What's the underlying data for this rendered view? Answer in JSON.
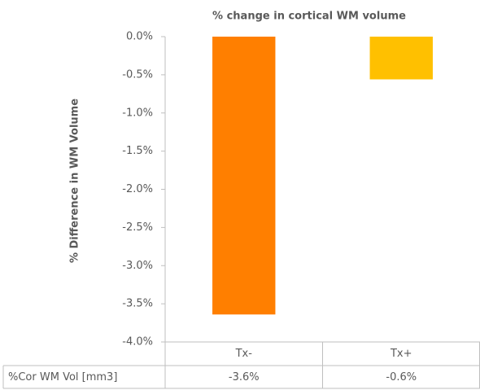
{
  "chart_data": {
    "type": "bar",
    "title": "% change in cortical WM volume",
    "ylabel": "% Difference in WM Volume",
    "categories": [
      "Tx-",
      "Tx+"
    ],
    "series": [
      {
        "name": "%Cor WM Vol [mm3]",
        "colors": [
          "#ff7f00",
          "#ffc000"
        ],
        "values": [
          -3.64,
          -0.56
        ],
        "value_labels": [
          "-3.6%",
          "-0.6%"
        ]
      }
    ],
    "ylim": [
      -4.0,
      0.0
    ],
    "yticks": [
      {
        "value": 0.0,
        "label": "0.0%"
      },
      {
        "value": -0.5,
        "label": "-0.5%"
      },
      {
        "value": -1.0,
        "label": "-1.0%"
      },
      {
        "value": -1.5,
        "label": "-1.5%"
      },
      {
        "value": -2.0,
        "label": "-2.0%"
      },
      {
        "value": -2.5,
        "label": "-2.5%"
      },
      {
        "value": -3.0,
        "label": "-3.0%"
      },
      {
        "value": -3.5,
        "label": "-3.5%"
      },
      {
        "value": -4.0,
        "label": "-4.0%"
      }
    ],
    "grid": false
  }
}
